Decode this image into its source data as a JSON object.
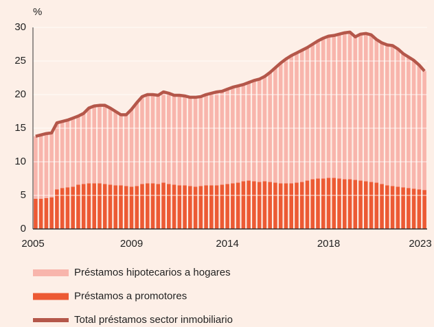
{
  "chart_data": {
    "type": "bar",
    "stacked": true,
    "y_label": "%",
    "categories": [
      "2005",
      null,
      null,
      null,
      null,
      null,
      null,
      null,
      null,
      null,
      null,
      null,
      null,
      null,
      null,
      null,
      null,
      null,
      "2009",
      null,
      null,
      null,
      null,
      null,
      null,
      null,
      null,
      null,
      null,
      null,
      null,
      null,
      null,
      null,
      null,
      null,
      "2014",
      null,
      null,
      null,
      null,
      null,
      null,
      null,
      null,
      null,
      null,
      null,
      null,
      null,
      null,
      null,
      null,
      null,
      null,
      "2018",
      null,
      null,
      null,
      null,
      null,
      null,
      null,
      null,
      null,
      null,
      null,
      null,
      null,
      null,
      null,
      null,
      null,
      "2023"
    ],
    "series": [
      {
        "name": "Préstamos hipotecarios a hogares",
        "type": "bar",
        "color": "#f8b5ac",
        "values": [
          9.3,
          9.5,
          9.6,
          9.6,
          9.9,
          9.9,
          10.0,
          10.2,
          10.2,
          10.5,
          11.2,
          11.5,
          11.6,
          11.7,
          11.4,
          11.0,
          10.5,
          10.6,
          11.5,
          12.4,
          13.0,
          13.2,
          13.2,
          13.2,
          13.5,
          13.5,
          13.3,
          13.4,
          13.3,
          13.2,
          13.3,
          13.3,
          13.5,
          13.7,
          13.9,
          13.9,
          14.1,
          14.3,
          14.4,
          14.4,
          14.6,
          15.0,
          15.3,
          15.6,
          16.3,
          17.1,
          17.9,
          18.5,
          19.0,
          19.3,
          19.6,
          19.8,
          20.1,
          20.5,
          20.9,
          21.1,
          21.2,
          21.5,
          21.8,
          21.9,
          21.3,
          21.8,
          22.0,
          21.9,
          21.3,
          21.0,
          20.9,
          20.9,
          20.5,
          19.9,
          19.5,
          19.1,
          18.5,
          17.7
        ]
      },
      {
        "name": "Préstamos a promotores",
        "type": "bar",
        "color": "#ec5a34",
        "values": [
          4.5,
          4.5,
          4.6,
          4.7,
          5.9,
          6.1,
          6.2,
          6.3,
          6.6,
          6.7,
          6.8,
          6.8,
          6.8,
          6.7,
          6.6,
          6.5,
          6.5,
          6.4,
          6.3,
          6.4,
          6.7,
          6.8,
          6.8,
          6.7,
          6.9,
          6.7,
          6.6,
          6.5,
          6.5,
          6.4,
          6.3,
          6.4,
          6.5,
          6.5,
          6.5,
          6.6,
          6.7,
          6.8,
          6.9,
          7.1,
          7.2,
          7.1,
          7.0,
          7.1,
          7.0,
          6.9,
          6.8,
          6.8,
          6.8,
          6.9,
          7.0,
          7.2,
          7.4,
          7.5,
          7.5,
          7.6,
          7.6,
          7.5,
          7.4,
          7.4,
          7.3,
          7.2,
          7.1,
          7.0,
          6.9,
          6.7,
          6.5,
          6.4,
          6.3,
          6.2,
          6.1,
          6.0,
          5.9,
          5.8
        ]
      },
      {
        "name": "Total préstamos sector inmobiliario",
        "type": "line",
        "color": "#b4574a",
        "values": [
          13.8,
          14.0,
          14.2,
          14.3,
          15.8,
          16.0,
          16.2,
          16.5,
          16.8,
          17.2,
          18.0,
          18.3,
          18.4,
          18.4,
          18.0,
          17.5,
          17.0,
          17.0,
          17.8,
          18.8,
          19.7,
          20.0,
          20.0,
          19.9,
          20.4,
          20.2,
          19.9,
          19.9,
          19.8,
          19.6,
          19.6,
          19.7,
          20.0,
          20.2,
          20.4,
          20.5,
          20.8,
          21.1,
          21.3,
          21.5,
          21.8,
          22.1,
          22.3,
          22.7,
          23.3,
          24.0,
          24.7,
          25.3,
          25.8,
          26.2,
          26.6,
          27.0,
          27.5,
          28.0,
          28.4,
          28.7,
          28.8,
          29.0,
          29.2,
          29.3,
          28.6,
          29.0,
          29.1,
          28.9,
          28.2,
          27.7,
          27.4,
          27.3,
          26.8,
          26.1,
          25.6,
          25.1,
          24.4,
          23.5
        ]
      }
    ],
    "ylim": [
      0,
      30
    ],
    "yticks": [
      0,
      5,
      10,
      15,
      20,
      25,
      30
    ],
    "grid": true,
    "legend": "bottom"
  }
}
